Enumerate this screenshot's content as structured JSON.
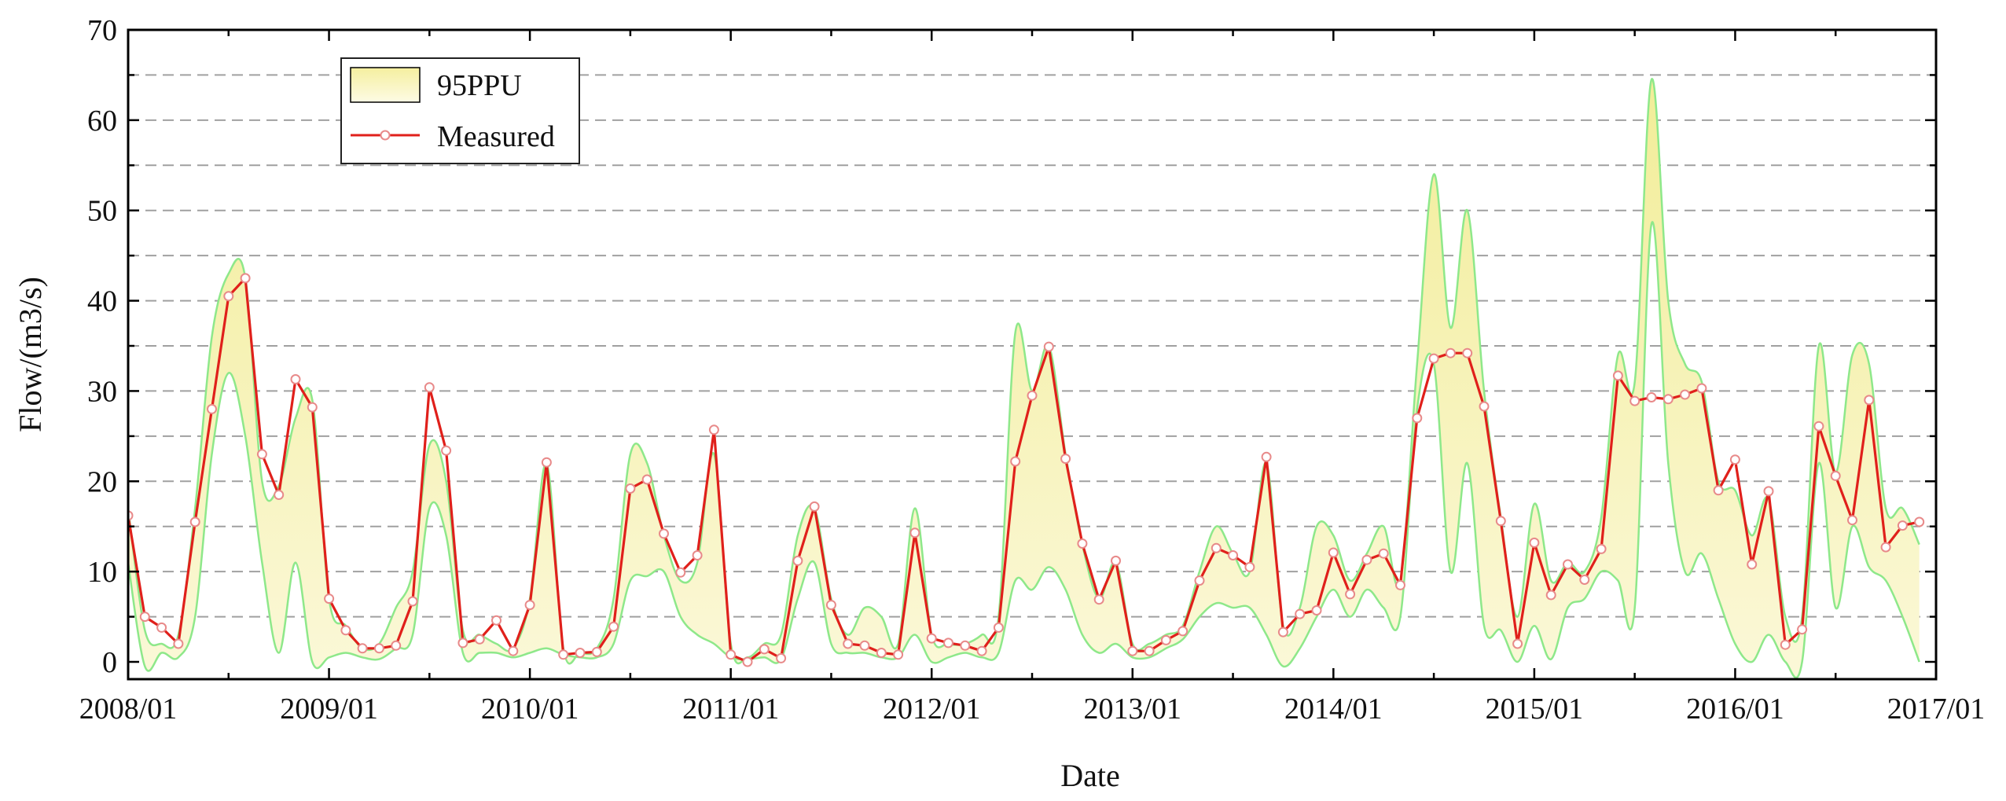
{
  "chart_data": {
    "type": "line",
    "xlabel": "Date",
    "ylabel": "Flow/(m3/s)",
    "xlim": [
      "2008/01",
      "2017/01"
    ],
    "ylim": [
      0,
      70
    ],
    "x_ticks": [
      "2008/01",
      "2009/01",
      "2010/01",
      "2011/01",
      "2012/01",
      "2013/01",
      "2014/01",
      "2015/01",
      "2016/01",
      "2017/01"
    ],
    "y_ticks": [
      0,
      10,
      20,
      30,
      40,
      50,
      60,
      70
    ],
    "grid": "horizontal dashed",
    "legend_position": "top-left",
    "legend": [
      "95PPU",
      "Measured"
    ],
    "colors": {
      "measured_line": "#e0201b",
      "marker_fill": "#ffffff",
      "band_fill": "#f7f3b8",
      "band_edge": "#8ee88a",
      "grid": "#a0a0a0"
    },
    "x": [
      "2008/01",
      "2008/02",
      "2008/03",
      "2008/04",
      "2008/05",
      "2008/06",
      "2008/07",
      "2008/08",
      "2008/09",
      "2008/10",
      "2008/11",
      "2008/12",
      "2009/01",
      "2009/02",
      "2009/03",
      "2009/04",
      "2009/05",
      "2009/06",
      "2009/07",
      "2009/08",
      "2009/09",
      "2009/10",
      "2009/11",
      "2009/12",
      "2010/01",
      "2010/02",
      "2010/03",
      "2010/04",
      "2010/05",
      "2010/06",
      "2010/07",
      "2010/08",
      "2010/09",
      "2010/10",
      "2010/11",
      "2010/12",
      "2011/01",
      "2011/02",
      "2011/03",
      "2011/04",
      "2011/05",
      "2011/06",
      "2011/07",
      "2011/08",
      "2011/09",
      "2011/10",
      "2011/11",
      "2011/12",
      "2012/01",
      "2012/02",
      "2012/03",
      "2012/04",
      "2012/05",
      "2012/06",
      "2012/07",
      "2012/08",
      "2012/09",
      "2012/10",
      "2012/11",
      "2012/12",
      "2013/01",
      "2013/02",
      "2013/03",
      "2013/04",
      "2013/05",
      "2013/06",
      "2013/07",
      "2013/08",
      "2013/09",
      "2013/10",
      "2013/11",
      "2013/12",
      "2014/01",
      "2014/02",
      "2014/03",
      "2014/04",
      "2014/05",
      "2014/06",
      "2014/07",
      "2014/08",
      "2014/09",
      "2014/10",
      "2014/11",
      "2014/12",
      "2015/01",
      "2015/02",
      "2015/03",
      "2015/04",
      "2015/05",
      "2015/06",
      "2015/07",
      "2015/08",
      "2015/09",
      "2015/10",
      "2015/11",
      "2015/12",
      "2016/01",
      "2016/02",
      "2016/03",
      "2016/04",
      "2016/05",
      "2016/06",
      "2016/07",
      "2016/08",
      "2016/09",
      "2016/10",
      "2016/11",
      "2016/12"
    ],
    "series": [
      {
        "name": "Measured",
        "type": "line",
        "values": [
          16.2,
          5.0,
          3.8,
          2.0,
          15.5,
          28.0,
          40.5,
          42.5,
          23.0,
          18.5,
          31.3,
          28.2,
          7.0,
          3.5,
          1.5,
          1.5,
          1.8,
          6.7,
          30.4,
          23.4,
          2.1,
          2.5,
          4.6,
          1.2,
          6.3,
          22.1,
          0.8,
          1.0,
          1.1,
          3.9,
          19.2,
          20.2,
          14.2,
          9.9,
          11.8,
          25.7,
          0.8,
          0.0,
          1.4,
          0.4,
          11.2,
          17.2,
          6.3,
          2.0,
          1.8,
          1.0,
          0.8,
          14.3,
          2.6,
          2.1,
          1.8,
          1.2,
          3.8,
          22.2,
          29.5,
          34.9,
          22.5,
          13.1,
          6.9,
          11.2,
          1.2,
          1.2,
          2.4,
          3.4,
          9.0,
          12.6,
          11.8,
          10.5,
          22.7,
          3.3,
          5.3,
          5.7,
          12.1,
          7.5,
          11.3,
          12.0,
          8.5,
          27.0,
          33.6,
          34.2,
          34.2,
          28.3,
          15.6,
          2.0,
          13.2,
          7.4,
          10.8,
          9.1,
          12.5,
          31.7,
          28.9,
          29.3,
          29.1,
          29.6,
          30.3,
          19.0,
          22.4,
          10.8,
          18.9,
          1.9,
          3.6,
          26.1,
          20.6,
          15.7,
          29.0,
          12.7,
          15.1,
          15.5
        ]
      },
      {
        "name": "95PPU",
        "type": "band",
        "upper": [
          17.0,
          3.5,
          2.0,
          3.0,
          17.0,
          36.0,
          43.0,
          42.5,
          20.0,
          19.5,
          27.0,
          29.0,
          7.0,
          4.0,
          1.5,
          2.0,
          6.0,
          10.0,
          24.0,
          20.0,
          3.5,
          3.0,
          2.0,
          1.5,
          7.0,
          22.0,
          1.5,
          1.0,
          1.5,
          7.0,
          23.0,
          22.0,
          14.0,
          9.0,
          11.0,
          23.0,
          2.0,
          0.5,
          2.0,
          3.0,
          14.0,
          17.0,
          7.0,
          3.0,
          6.0,
          5.0,
          2.0,
          17.0,
          3.0,
          2.0,
          2.0,
          3.0,
          5.0,
          36.5,
          30.0,
          35.0,
          23.0,
          13.0,
          7.0,
          11.0,
          2.0,
          2.0,
          3.0,
          4.0,
          10.0,
          15.0,
          12.0,
          10.0,
          22.0,
          4.0,
          6.0,
          15.0,
          14.0,
          9.0,
          12.0,
          15.0,
          9.0,
          33.0,
          54.0,
          37.0,
          50.0,
          30.0,
          16.0,
          5.0,
          17.5,
          9.0,
          11.0,
          10.0,
          16.0,
          34.0,
          31.0,
          64.5,
          40.0,
          33.0,
          31.0,
          20.0,
          19.0,
          14.0,
          18.0,
          5.0,
          5.0,
          35.0,
          21.0,
          34.0,
          33.0,
          17.0,
          17.0,
          13.0
        ],
        "lower": [
          11.0,
          -0.5,
          1.0,
          0.5,
          5.0,
          23.0,
          32.0,
          25.0,
          11.0,
          1.0,
          11.0,
          0.0,
          0.5,
          1.0,
          0.5,
          0.3,
          1.5,
          3.0,
          17.0,
          14.0,
          1.0,
          1.0,
          1.0,
          0.5,
          1.0,
          1.5,
          0.8,
          0.5,
          0.5,
          2.0,
          9.0,
          9.5,
          10.0,
          5.0,
          3.0,
          2.0,
          0.5,
          0.3,
          0.5,
          0.3,
          7.0,
          11.0,
          2.0,
          1.0,
          1.0,
          0.5,
          0.5,
          3.0,
          0.0,
          0.5,
          1.0,
          0.5,
          1.0,
          9.0,
          8.0,
          10.5,
          8.0,
          3.0,
          1.0,
          2.0,
          0.5,
          0.5,
          1.5,
          2.5,
          5.0,
          6.5,
          6.0,
          6.0,
          3.0,
          -0.5,
          1.5,
          5.0,
          8.0,
          5.0,
          8.0,
          6.0,
          5.0,
          28.0,
          33.0,
          10.0,
          22.0,
          4.0,
          3.5,
          0.0,
          4.0,
          0.3,
          6.0,
          7.0,
          10.0,
          9.0,
          6.0,
          48.5,
          22.0,
          10.0,
          12.0,
          7.0,
          2.0,
          0.0,
          3.0,
          0.0,
          0.0,
          22.0,
          6.0,
          15.0,
          10.5,
          9.0,
          5.0,
          0.0
        ]
      }
    ]
  }
}
